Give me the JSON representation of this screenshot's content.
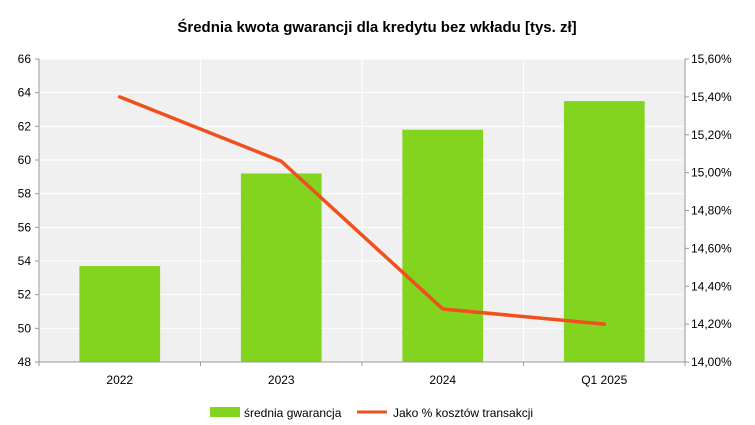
{
  "chart_data": {
    "type": "bar",
    "title": "Średnia kwota gwarancji dla kredytu bez wkładu [tys. zł]",
    "categories": [
      "2022",
      "2023",
      "2024",
      "Q1 2025"
    ],
    "series": [
      {
        "name": "średnia gwarancja",
        "type": "bar",
        "axis": "left",
        "values": [
          53.7,
          59.2,
          61.8,
          63.5
        ],
        "color": "#83D41E"
      },
      {
        "name": "Jako % kosztów transakcji",
        "type": "line",
        "axis": "right",
        "values": [
          15.4,
          15.06,
          14.28,
          14.2
        ],
        "color": "#F0501E"
      }
    ],
    "y_left": {
      "min": 48,
      "max": 66,
      "ticks": [
        "48",
        "50",
        "52",
        "54",
        "56",
        "58",
        "60",
        "62",
        "64",
        "66"
      ]
    },
    "y_right": {
      "min": 14.0,
      "max": 15.6,
      "ticks": [
        "14,00%",
        "14,20%",
        "14,40%",
        "14,60%",
        "14,80%",
        "15,00%",
        "15,20%",
        "15,40%",
        "15,60%"
      ]
    },
    "grid": true,
    "legend_position": "bottom",
    "plot_background": "#F0F0F0",
    "grid_color": "#FFFFFF"
  }
}
